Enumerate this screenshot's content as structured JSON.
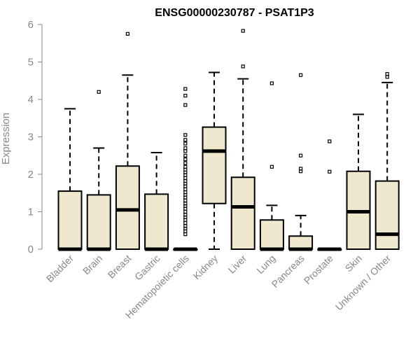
{
  "chart_data": {
    "type": "boxplot",
    "title": "ENSG00000230787 - PSAT1P3",
    "xlabel": "",
    "ylabel": "Expression",
    "ylim": [
      0,
      6
    ],
    "yticks": [
      0,
      1,
      2,
      3,
      4,
      5,
      6
    ],
    "grid": false,
    "box_fill": "#efe8cf",
    "box_stroke": "#000000",
    "categories": [
      "Bladder",
      "Brain",
      "Breast",
      "Gastric",
      "Hematopoietic cells",
      "Kidney",
      "Liver",
      "Lung",
      "Pancreas",
      "Prostate",
      "Skin",
      "Unknown / Other"
    ],
    "boxes": [
      {
        "q1": 0,
        "median": 0,
        "q3": 1.55,
        "whisker_low": 0,
        "whisker_high": 3.75,
        "outliers": []
      },
      {
        "q1": 0,
        "median": 0,
        "q3": 1.45,
        "whisker_low": 0,
        "whisker_high": 2.7,
        "outliers": [
          4.2
        ]
      },
      {
        "q1": 0,
        "median": 1.05,
        "q3": 2.22,
        "whisker_low": 0,
        "whisker_high": 4.65,
        "outliers": [
          5.75
        ]
      },
      {
        "q1": 0,
        "median": 0,
        "q3": 1.47,
        "whisker_low": 0,
        "whisker_high": 2.58,
        "outliers": []
      },
      {
        "q1": 0,
        "median": 0,
        "q3": 0,
        "whisker_low": 0,
        "whisker_high": 0,
        "outliers": [
          0.4,
          0.48,
          0.55,
          0.62,
          0.7,
          0.78,
          0.85,
          0.92,
          1.0,
          1.08,
          1.15,
          1.22,
          1.3,
          1.38,
          1.45,
          1.52,
          1.6,
          1.68,
          1.75,
          1.82,
          1.9,
          1.98,
          2.05,
          2.12,
          2.2,
          2.3,
          2.4,
          2.5,
          2.62,
          2.7,
          2.82,
          2.92,
          3.05,
          3.85,
          4.1,
          4.28
        ]
      },
      {
        "q1": 1.22,
        "median": 2.62,
        "q3": 3.26,
        "whisker_low": 0,
        "whisker_high": 4.72,
        "outliers": []
      },
      {
        "q1": 0,
        "median": 1.13,
        "q3": 1.92,
        "whisker_low": 0,
        "whisker_high": 4.55,
        "outliers": [
          4.88,
          5.83
        ]
      },
      {
        "q1": 0,
        "median": 0,
        "q3": 0.78,
        "whisker_low": 0,
        "whisker_high": 1.17,
        "outliers": [
          2.2,
          4.43
        ]
      },
      {
        "q1": 0,
        "median": 0,
        "q3": 0.35,
        "whisker_low": 0,
        "whisker_high": 0.9,
        "outliers": [
          2.08,
          2.15,
          2.5,
          4.65
        ]
      },
      {
        "q1": 0,
        "median": 0,
        "q3": 0,
        "whisker_low": 0,
        "whisker_high": 0,
        "outliers": [
          2.07,
          2.88
        ]
      },
      {
        "q1": 0,
        "median": 1.0,
        "q3": 2.08,
        "whisker_low": 0,
        "whisker_high": 3.6,
        "outliers": []
      },
      {
        "q1": 0,
        "median": 0.4,
        "q3": 1.82,
        "whisker_low": 0,
        "whisker_high": 4.45,
        "outliers": [
          4.6,
          4.68
        ]
      }
    ]
  }
}
